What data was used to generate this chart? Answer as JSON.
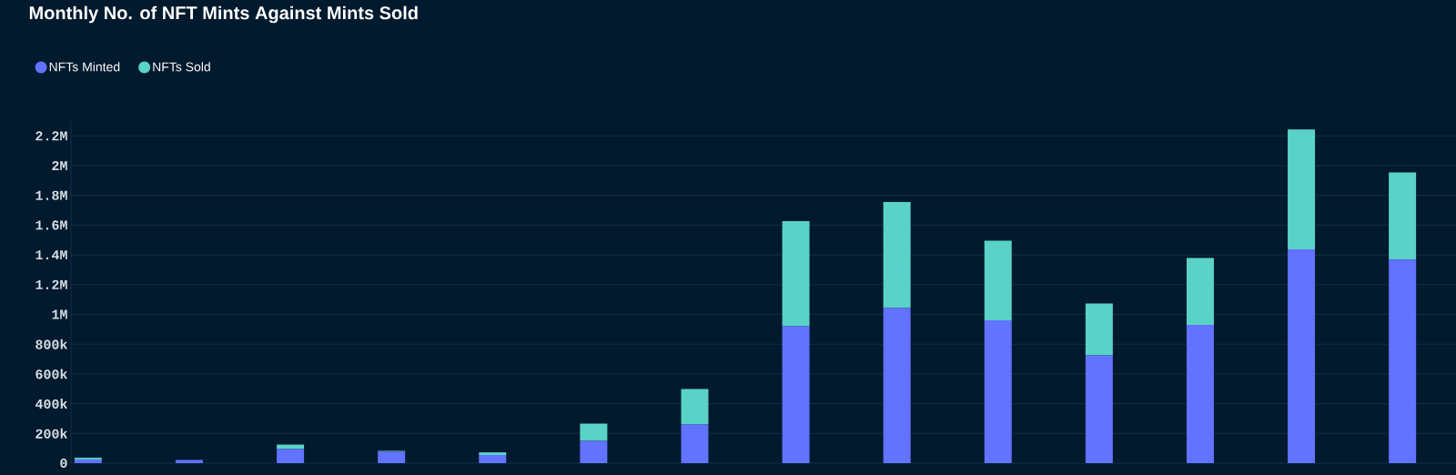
{
  "chart_data": {
    "type": "bar",
    "stacked": true,
    "title": "Monthly No. of NFT Mints Against Mints Sold",
    "categories": [
      null,
      null,
      null,
      null,
      null,
      null,
      null,
      null,
      null,
      null,
      null,
      null,
      null,
      null
    ],
    "series": [
      {
        "name": "NFTs Minted",
        "color": "#6173ff",
        "values": [
          25000,
          22000,
          95000,
          78000,
          55000,
          150000,
          260000,
          920000,
          1043000,
          961000,
          725000,
          930000,
          1438000,
          1368000
        ]
      },
      {
        "name": "NFTs Sold",
        "color": "#5ad2c8",
        "values": [
          12000,
          null,
          30000,
          5000,
          18000,
          116000,
          239000,
          707000,
          713000,
          535000,
          349000,
          450000,
          805000,
          587000
        ]
      }
    ],
    "ylim": [
      0,
      2300000
    ],
    "yticks": [
      {
        "value": 0,
        "label": "0"
      },
      {
        "value": 200000,
        "label": "200k"
      },
      {
        "value": 400000,
        "label": "400k"
      },
      {
        "value": 600000,
        "label": "600k"
      },
      {
        "value": 800000,
        "label": "800k"
      },
      {
        "value": 1000000,
        "label": "1M"
      },
      {
        "value": 1200000,
        "label": "1.2M"
      },
      {
        "value": 1400000,
        "label": "1.4M"
      },
      {
        "value": 1600000,
        "label": "1.6M"
      },
      {
        "value": 1800000,
        "label": "1.8M"
      },
      {
        "value": 2000000,
        "label": "2M"
      },
      {
        "value": 2200000,
        "label": "2.2M"
      }
    ],
    "grid": "y",
    "legend": "top left"
  }
}
